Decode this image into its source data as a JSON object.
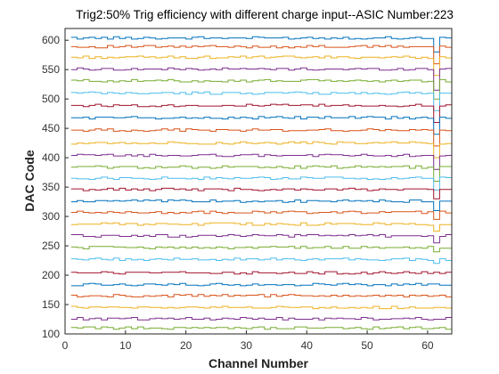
{
  "chart_data": {
    "type": "line",
    "title": "Trig2:50% Trig efficiency with different charge input--ASIC Number:223",
    "xlabel": "Channel Number",
    "ylabel": "DAC Code",
    "xlim": [
      0,
      64
    ],
    "ylim": [
      100,
      620
    ],
    "xticks": [
      0,
      10,
      20,
      30,
      40,
      50,
      60
    ],
    "yticks": [
      100,
      150,
      200,
      250,
      300,
      350,
      400,
      450,
      500,
      550,
      600
    ],
    "xtick_labels": [
      "0",
      "10",
      "20",
      "30",
      "40",
      "50",
      "60"
    ],
    "ytick_labels": [
      "100",
      "150",
      "200",
      "250",
      "300",
      "350",
      "400",
      "450",
      "500",
      "550",
      "600"
    ],
    "grid": false,
    "legend": false,
    "step_style": true,
    "x": [
      1,
      2,
      3,
      4,
      5,
      6,
      7,
      8,
      9,
      10,
      11,
      12,
      13,
      14,
      15,
      16,
      17,
      18,
      19,
      20,
      21,
      22,
      23,
      24,
      25,
      26,
      27,
      28,
      29,
      30,
      31,
      32,
      33,
      34,
      35,
      36,
      37,
      38,
      39,
      40,
      41,
      42,
      43,
      44,
      45,
      46,
      47,
      48,
      49,
      50,
      51,
      52,
      53,
      54,
      55,
      56,
      57,
      58,
      59,
      60,
      61,
      62,
      63,
      64
    ],
    "channel_61_outliers": [
      580,
      560,
      540,
      515,
      500,
      480,
      460,
      440,
      420,
      400,
      380,
      360,
      345,
      330,
      310,
      295,
      275,
      255,
      240,
      220,
      205,
      185,
      165,
      145,
      125,
      110
    ],
    "series": [
      {
        "color": "#0072BD",
        "base": 604
      },
      {
        "color": "#D95319",
        "base": 589
      },
      {
        "color": "#EDB120",
        "base": 571
      },
      {
        "color": "#7E2F8E",
        "base": 551
      },
      {
        "color": "#77AC30",
        "base": 531
      },
      {
        "color": "#4DBEEE",
        "base": 510
      },
      {
        "color": "#A2142F",
        "base": 489
      },
      {
        "color": "#0072BD",
        "base": 468
      },
      {
        "color": "#D95319",
        "base": 447
      },
      {
        "color": "#EDB120",
        "base": 425
      },
      {
        "color": "#7E2F8E",
        "base": 404
      },
      {
        "color": "#77AC30",
        "base": 384
      },
      {
        "color": "#4DBEEE",
        "base": 365
      },
      {
        "color": "#A2142F",
        "base": 346
      },
      {
        "color": "#0072BD",
        "base": 326
      },
      {
        "color": "#D95319",
        "base": 307
      },
      {
        "color": "#EDB120",
        "base": 287
      },
      {
        "color": "#7E2F8E",
        "base": 267
      },
      {
        "color": "#77AC30",
        "base": 247
      },
      {
        "color": "#4DBEEE",
        "base": 227
      },
      {
        "color": "#A2142F",
        "base": 204
      },
      {
        "color": "#0072BD",
        "base": 184
      },
      {
        "color": "#D95319",
        "base": 165
      },
      {
        "color": "#EDB120",
        "base": 145
      },
      {
        "color": "#7E2F8E",
        "base": 126
      },
      {
        "color": "#77AC30",
        "base": 110
      }
    ]
  }
}
